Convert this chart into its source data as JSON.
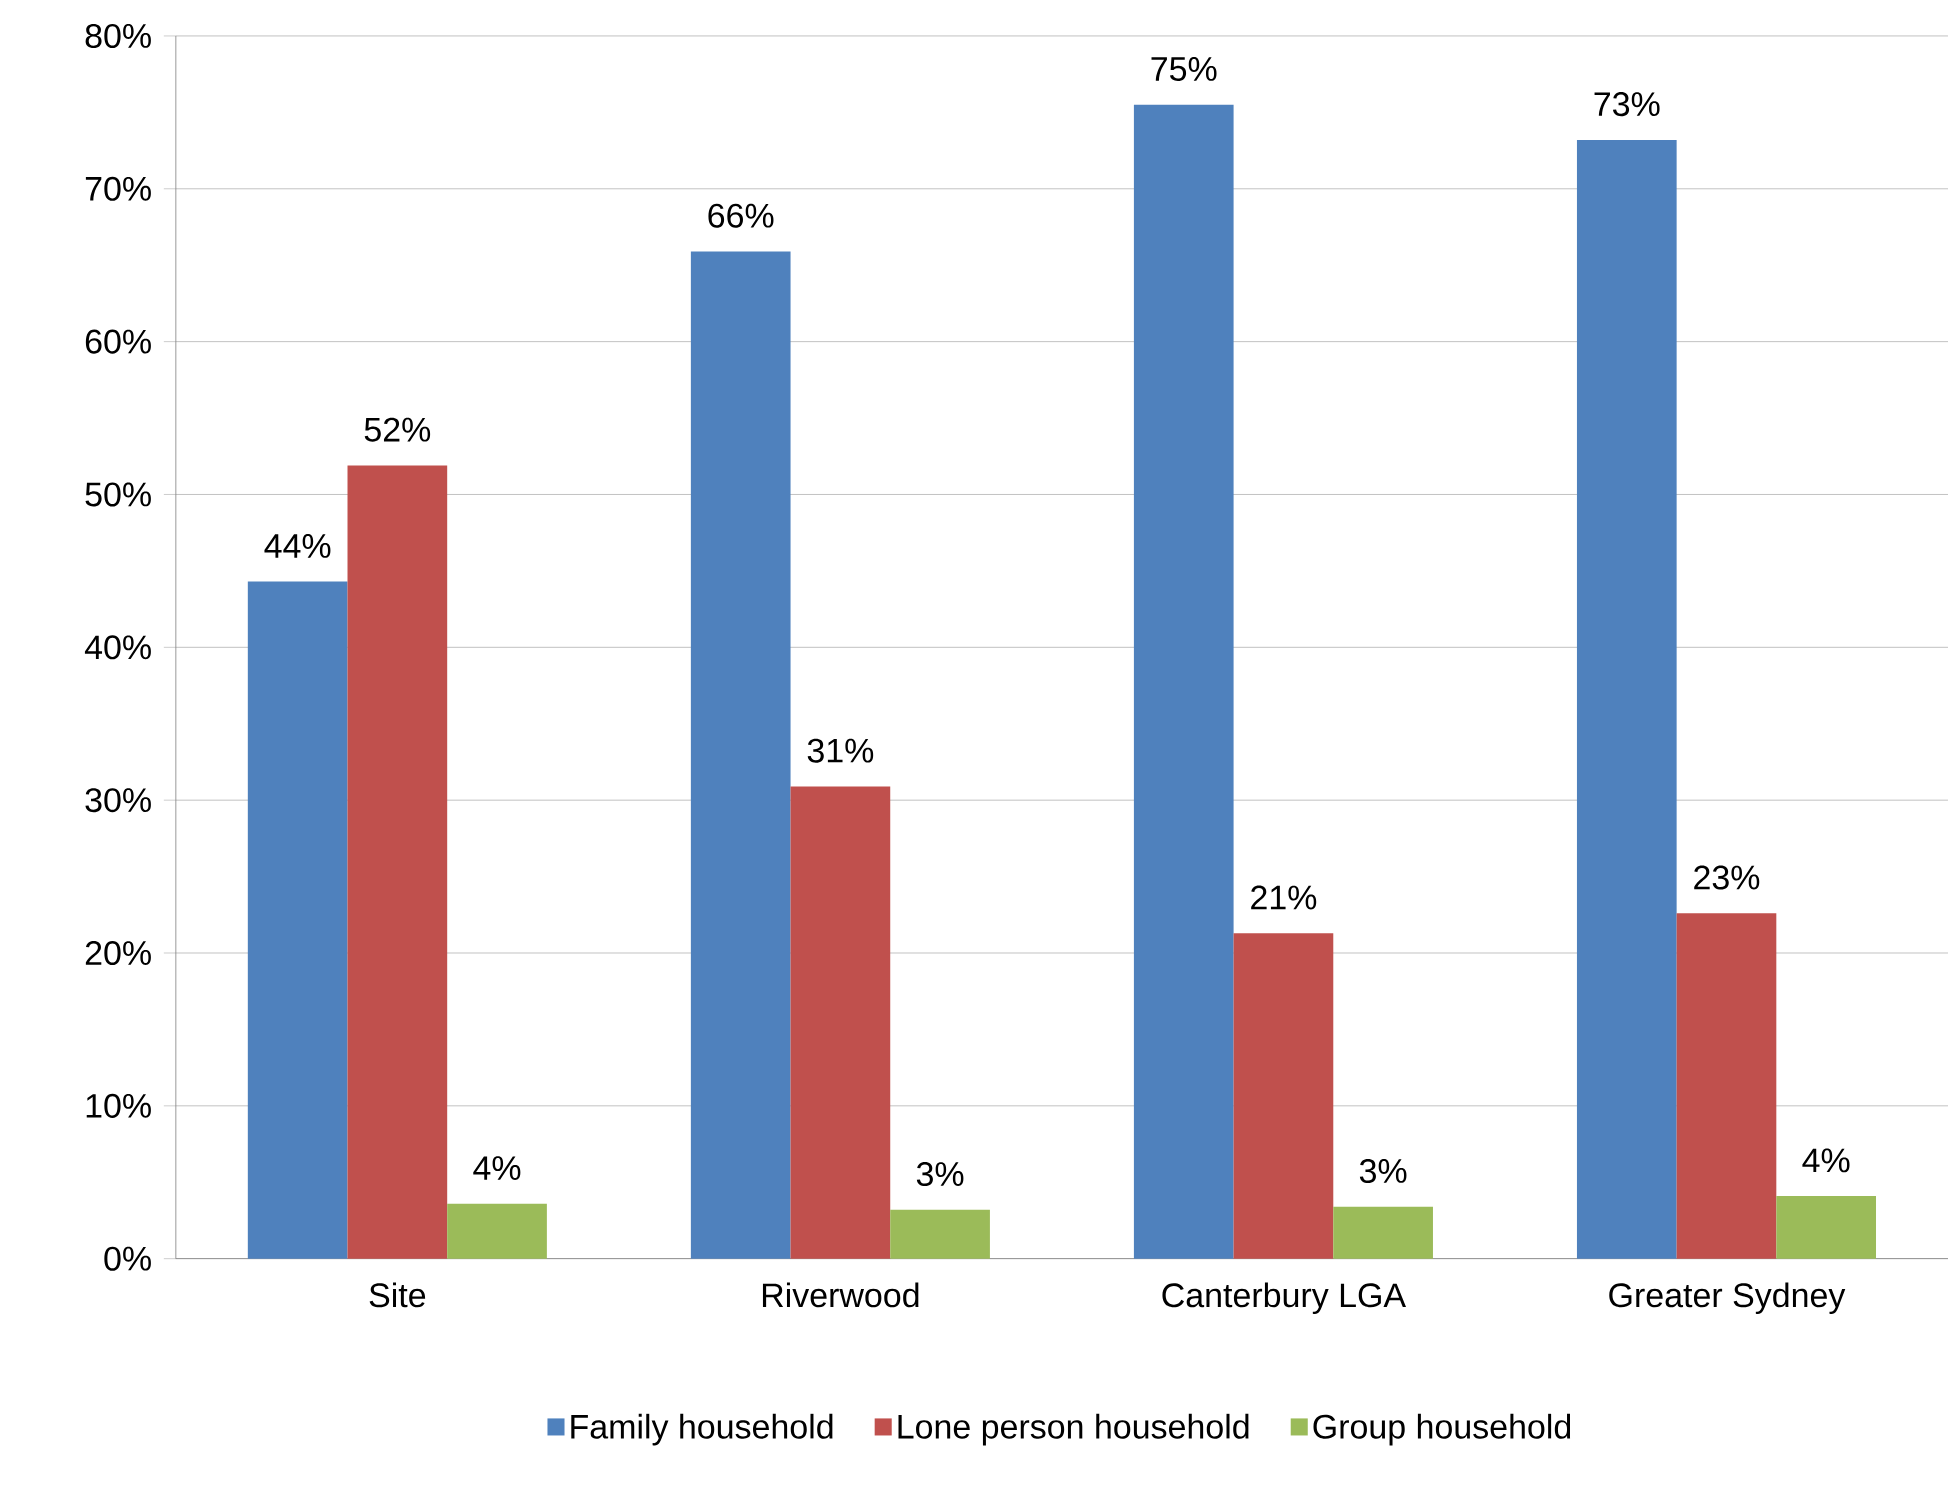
{
  "chart_data": {
    "type": "bar",
    "categories": [
      "Site",
      "Riverwood",
      "Canterbury LGA",
      "Greater Sydney"
    ],
    "series": [
      {
        "name": "Family household",
        "color": "#4f81bd",
        "values": [
          44.3,
          65.9,
          75.5,
          73.2
        ],
        "value_labels": [
          "44%",
          "66%",
          "75%",
          "73%"
        ]
      },
      {
        "name": "Lone person household",
        "color": "#c0504d",
        "values": [
          51.9,
          30.9,
          21.3,
          22.6
        ],
        "value_labels": [
          "52%",
          "31%",
          "21%",
          "23%"
        ]
      },
      {
        "name": "Group household",
        "color": "#9bbb59",
        "values": [
          3.6,
          3.2,
          3.4,
          4.1
        ],
        "value_labels": [
          "4%",
          "3%",
          "3%",
          "4%"
        ]
      }
    ],
    "ylim": [
      0,
      80
    ],
    "yticks": [
      {
        "value": 0,
        "label": "0%"
      },
      {
        "value": 10,
        "label": "10%"
      },
      {
        "value": 20,
        "label": "20%"
      },
      {
        "value": 30,
        "label": "30%"
      },
      {
        "value": 40,
        "label": "40%"
      },
      {
        "value": 50,
        "label": "50%"
      },
      {
        "value": 60,
        "label": "60%"
      },
      {
        "value": 70,
        "label": "70%"
      },
      {
        "value": 80,
        "label": "80%"
      }
    ],
    "grid": "y",
    "legend": "bottom"
  }
}
